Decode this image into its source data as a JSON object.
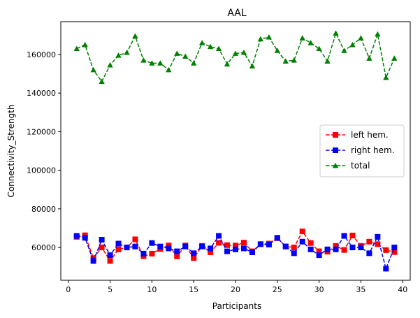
{
  "chart_data": {
    "type": "line",
    "title": "AAL",
    "xlabel": "Participants",
    "ylabel": "Connectivity_Strength",
    "xlim": [
      -0.9,
      40.9
    ],
    "ylim": [
      43000,
      177000
    ],
    "xticks": [
      0,
      5,
      10,
      15,
      20,
      25,
      30,
      35,
      40
    ],
    "yticks": [
      60000,
      80000,
      100000,
      120000,
      140000,
      160000
    ],
    "grid": false,
    "legend_position": "center-right",
    "x": [
      1,
      2,
      3,
      4,
      5,
      6,
      7,
      8,
      9,
      10,
      11,
      12,
      13,
      14,
      15,
      16,
      17,
      18,
      19,
      20,
      21,
      22,
      23,
      24,
      25,
      26,
      27,
      28,
      29,
      30,
      31,
      32,
      33,
      34,
      35,
      36,
      37,
      38,
      39
    ],
    "series": [
      {
        "name": "left hem.",
        "color": "#ff0000",
        "marker": "square",
        "linestyle": "dashed",
        "values": [
          65500,
          66300,
          54500,
          60000,
          53000,
          59000,
          60000,
          64200,
          55500,
          56800,
          59200,
          61000,
          55400,
          61000,
          54500,
          60800,
          57500,
          62400,
          61200,
          61000,
          62500,
          58000,
          61700,
          62000,
          64800,
          60500,
          60000,
          68300,
          62300,
          58000,
          57800,
          60800,
          58700,
          66200,
          60800,
          63000,
          61700,
          58600,
          57600
        ]
      },
      {
        "name": "right hem.",
        "color": "#0000ff",
        "marker": "square",
        "linestyle": "dashed",
        "values": [
          66000,
          65000,
          53000,
          64000,
          56000,
          62000,
          60000,
          60500,
          56800,
          62300,
          60500,
          59500,
          58000,
          60500,
          57000,
          60500,
          59500,
          66000,
          58000,
          59000,
          59500,
          57500,
          61700,
          61500,
          65000,
          60500,
          57000,
          63000,
          59000,
          56000,
          59000,
          59000,
          66000,
          60000,
          60000,
          57000,
          65500,
          49000,
          60000
        ]
      },
      {
        "name": "total",
        "color": "#008000",
        "marker": "triangle",
        "linestyle": "dashed",
        "values": [
          163000,
          165000,
          152000,
          146000,
          154500,
          159500,
          161000,
          169500,
          157000,
          155500,
          155500,
          152000,
          160500,
          159000,
          155500,
          166000,
          164000,
          163000,
          155000,
          160500,
          161000,
          154000,
          168000,
          169000,
          162000,
          156500,
          157000,
          168500,
          166000,
          163000,
          156500,
          171000,
          162000,
          165000,
          168500,
          158000,
          170500,
          148000,
          158000
        ]
      }
    ]
  }
}
